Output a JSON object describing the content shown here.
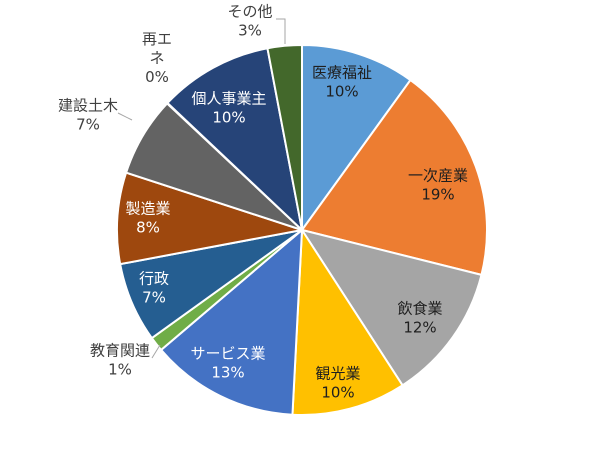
{
  "chart_data": {
    "type": "pie",
    "title": "",
    "categories": [
      "医療福祉",
      "一次産業",
      "飲食業",
      "観光業",
      "サービス業",
      "教育関連",
      "行政",
      "製造業",
      "建設土木",
      "再エネ",
      "個人事業主",
      "その他"
    ],
    "values": [
      10,
      19,
      12,
      10,
      13,
      1.3,
      7,
      8,
      7,
      0.05,
      10,
      3
    ],
    "labels": [
      {
        "name": "医療福祉",
        "pct": "10%"
      },
      {
        "name": "一次産業",
        "pct": "19%"
      },
      {
        "name": "飲食業",
        "pct": "12%"
      },
      {
        "name": "観光業",
        "pct": "10%"
      },
      {
        "name": "サービス業",
        "pct": "13%"
      },
      {
        "name": "教育関連",
        "pct": "1%"
      },
      {
        "name": "行政",
        "pct": "7%"
      },
      {
        "name": "製造業",
        "pct": "8%"
      },
      {
        "name": "建設土木",
        "pct": "7%"
      },
      {
        "name": "再エ\nネ",
        "pct": "0%"
      },
      {
        "name": "個人事業主",
        "pct": "10%"
      },
      {
        "name": "その他",
        "pct": "3%"
      }
    ],
    "colors": [
      "#5B9BD5",
      "#ED7D31",
      "#A5A5A5",
      "#FFC000",
      "#4472C4",
      "#70AD47",
      "#255E91",
      "#9E480E",
      "#636363",
      "#997300",
      "#264478",
      "#43682B"
    ],
    "start": "12 o'clock",
    "direction": "clockwise",
    "legend": "none"
  }
}
